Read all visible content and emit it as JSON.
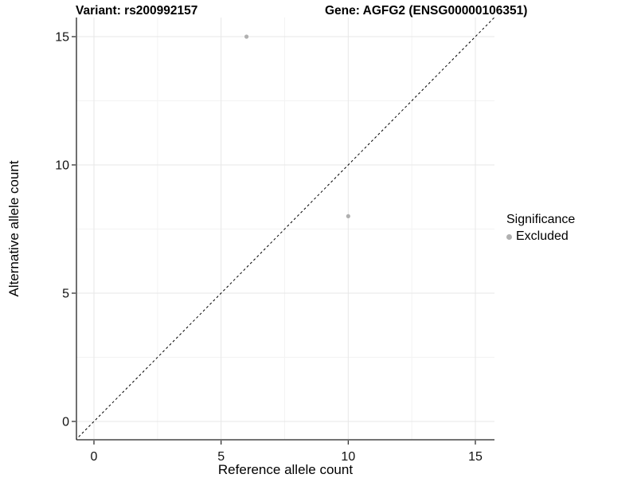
{
  "titles": {
    "left": "Variant: rs200992157",
    "right": "Gene: AGFG2 (ENSG00000106351)"
  },
  "chart_data": {
    "type": "scatter",
    "title_left": "Variant: rs200992157",
    "title_right": "Gene: AGFG2 (ENSG00000106351)",
    "xlabel": "Reference allele count",
    "ylabel": "Alternative allele count",
    "xlim": [
      0,
      15
    ],
    "ylim": [
      0,
      15
    ],
    "xticks": [
      0,
      5,
      10,
      15
    ],
    "yticks": [
      0,
      5,
      10,
      15
    ],
    "minor_xticks": [
      2.5,
      7.5,
      12.5
    ],
    "minor_yticks": [
      2.5,
      7.5,
      12.5
    ],
    "grid": true,
    "legend_position": "right",
    "legend": {
      "title": "Significance"
    },
    "series": [
      {
        "name": "Excluded",
        "color": "#b0b0b0",
        "points": [
          {
            "x": 6,
            "y": 15
          },
          {
            "x": 10,
            "y": 8
          }
        ]
      }
    ],
    "reference_line": {
      "kind": "identity y = x",
      "style": "dashed",
      "color": "#000000"
    }
  },
  "colors": {
    "background": "#ffffff",
    "axis": "#222222",
    "tick_text": "#111111",
    "grid_major": "#e7e7e7",
    "grid_minor": "#f3f3f3",
    "point": "#b0b0b0"
  }
}
